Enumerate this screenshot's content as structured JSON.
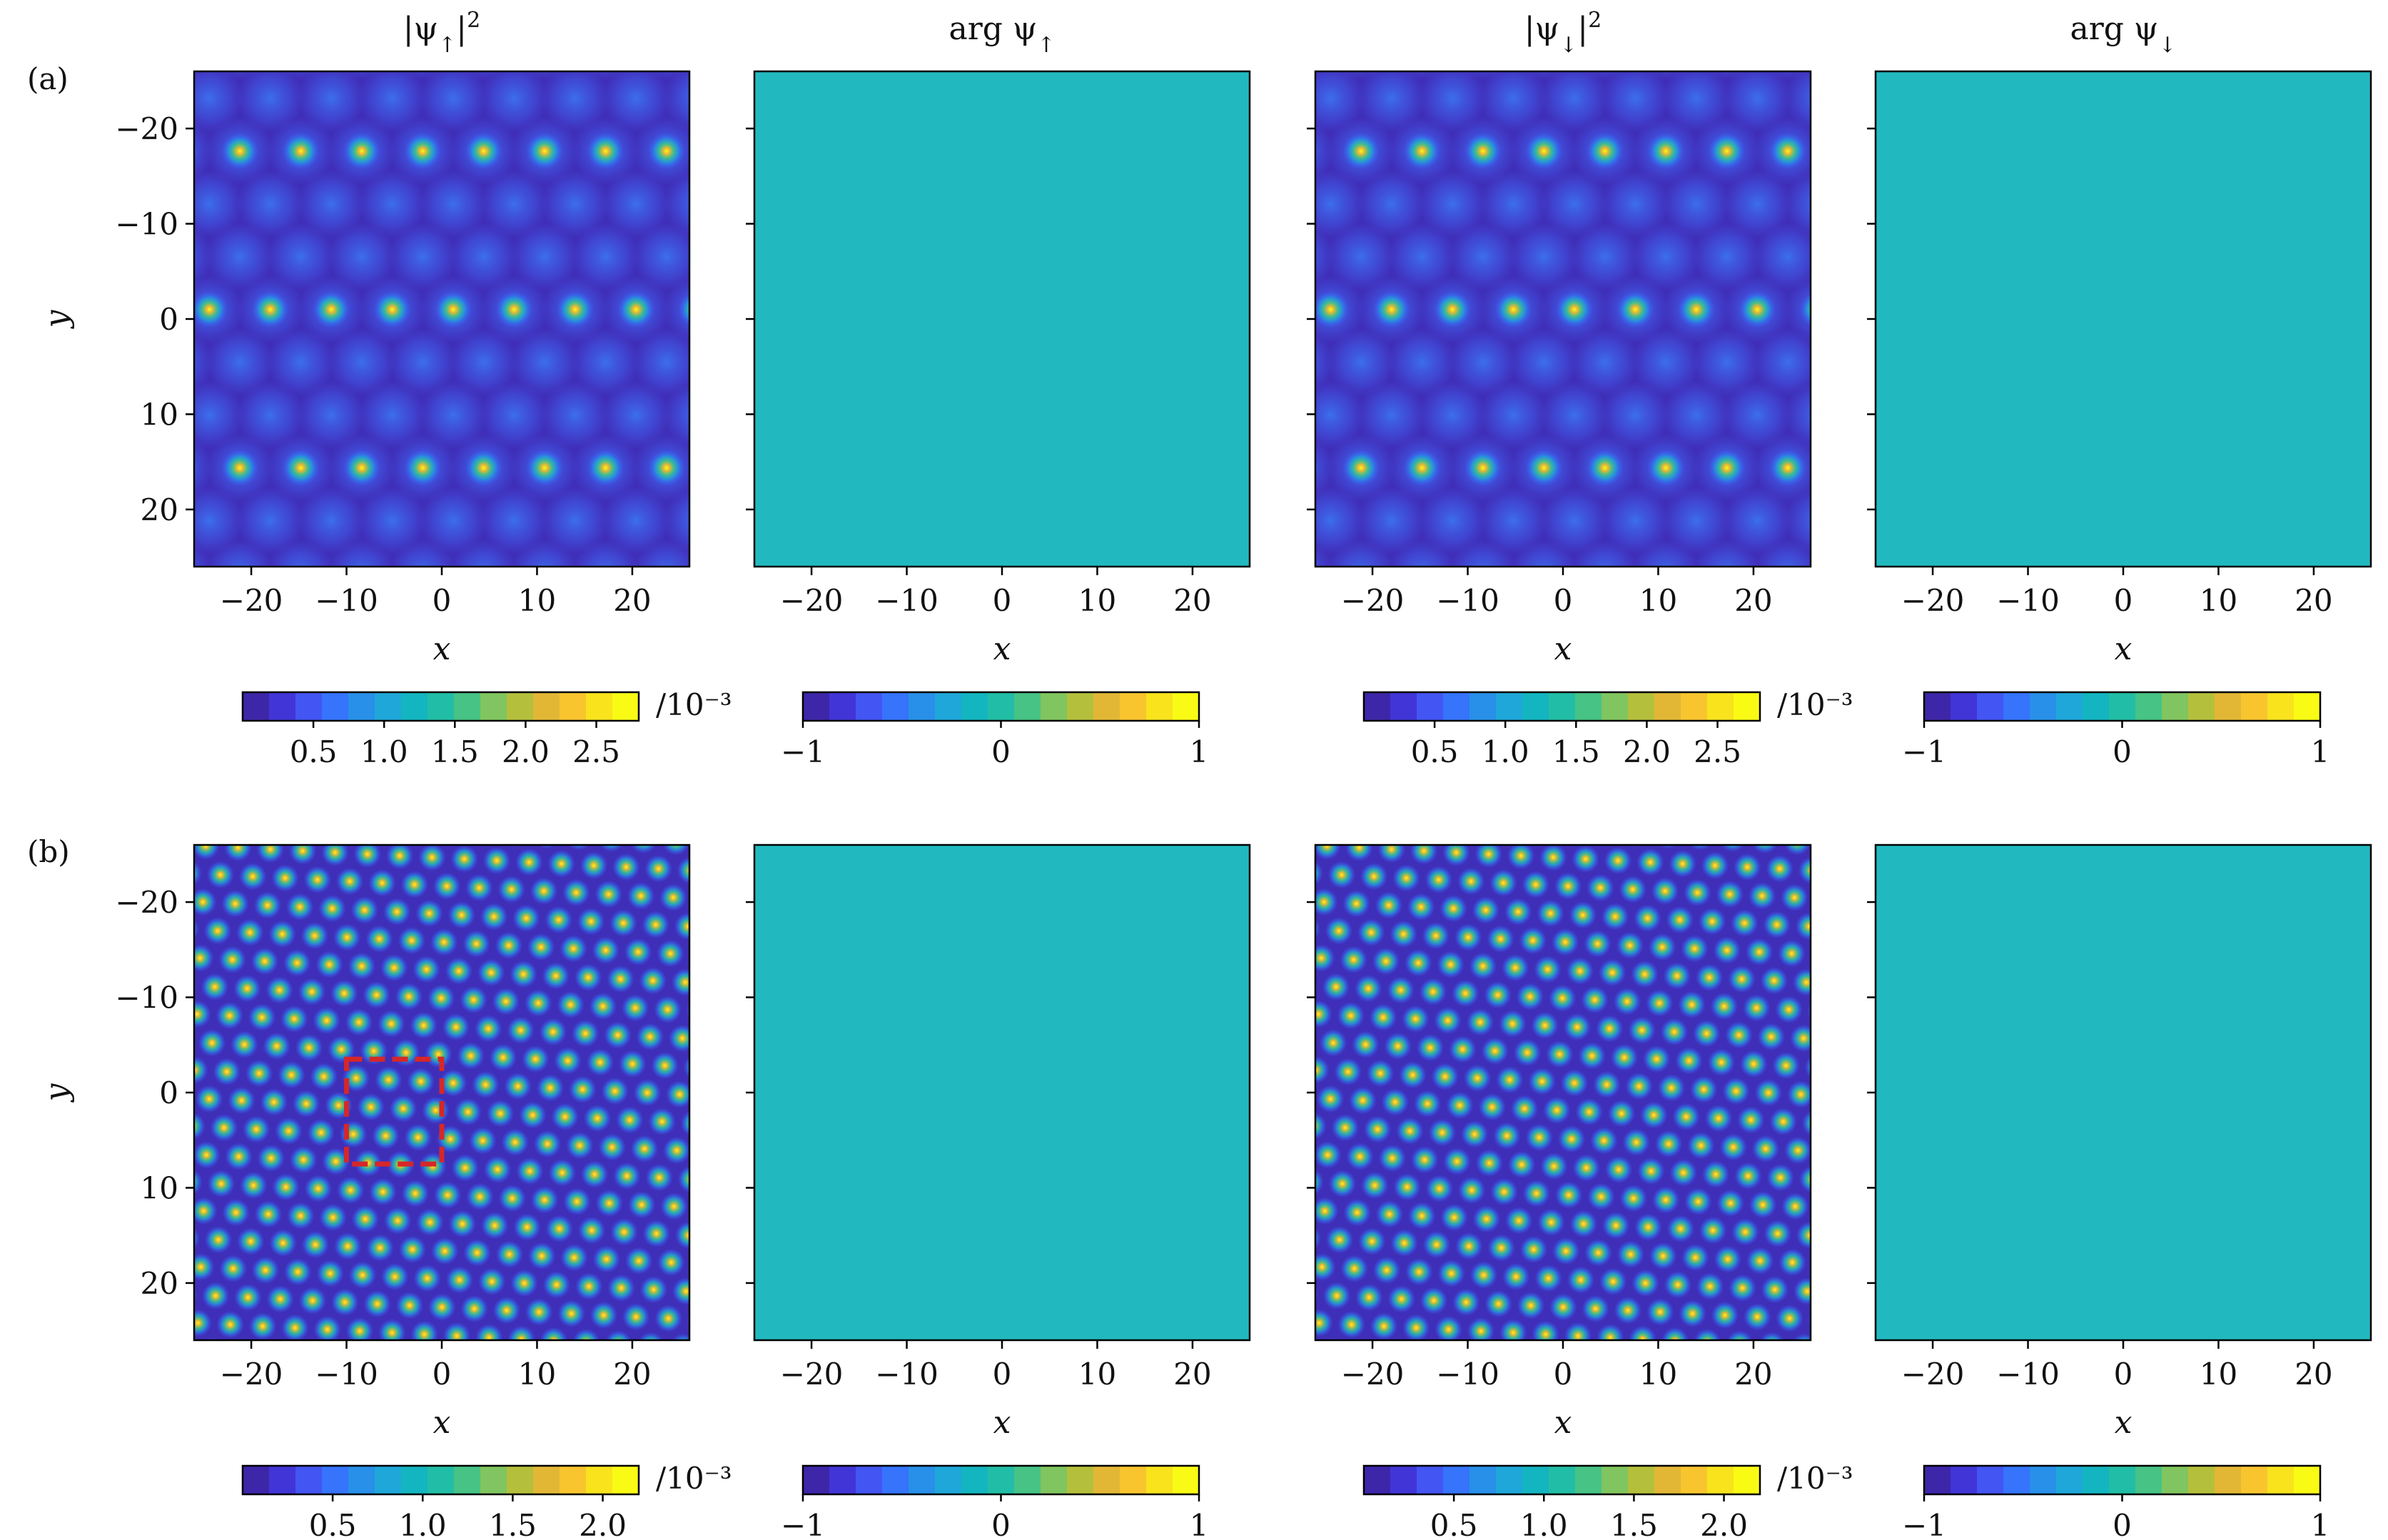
{
  "figure": {
    "rows": [
      {
        "label": "(a)"
      },
      {
        "label": "(b)"
      }
    ]
  },
  "chart_data": [
    {
      "type": "heatmap",
      "row": "(a)",
      "column": 1,
      "title": "|ψ↑|²",
      "xlabel": "x",
      "ylabel": "y",
      "xlim": [
        -26,
        26
      ],
      "ylim": [
        -26,
        26
      ],
      "xticks": [
        -20,
        -10,
        0,
        10,
        20
      ],
      "yticks": [
        -20,
        -10,
        0,
        10,
        20
      ],
      "pattern": "quasicrystal density peaks",
      "peak_spacing": 6.4,
      "peak_max": 2.8,
      "colorbar": {
        "ticks": [
          "0.5",
          "1.0",
          "1.5",
          "2.0",
          "2.5"
        ],
        "tick_values": [
          0.5,
          1.0,
          1.5,
          2.0,
          2.5
        ],
        "range": [
          0,
          2.8
        ],
        "unit": "/10⁻³"
      }
    },
    {
      "type": "heatmap",
      "row": "(a)",
      "column": 2,
      "title": "arg ψ↑",
      "xlabel": "x",
      "ylabel": "",
      "xlim": [
        -26,
        26
      ],
      "ylim": [
        -26,
        26
      ],
      "xticks": [
        -20,
        -10,
        0,
        10,
        20
      ],
      "yticks": [
        -20,
        -10,
        0,
        10,
        20
      ],
      "uniform_value": 0,
      "colorbar": {
        "ticks": [
          "−1",
          "0",
          "1"
        ],
        "tick_values": [
          -1,
          0,
          1
        ],
        "range": [
          -1,
          1
        ],
        "unit": ""
      }
    },
    {
      "type": "heatmap",
      "row": "(a)",
      "column": 3,
      "title": "|ψ↓|²",
      "xlabel": "x",
      "ylabel": "",
      "xlim": [
        -26,
        26
      ],
      "ylim": [
        -26,
        26
      ],
      "xticks": [
        -20,
        -10,
        0,
        10,
        20
      ],
      "yticks": [
        -20,
        -10,
        0,
        10,
        20
      ],
      "pattern": "quasicrystal density peaks",
      "peak_spacing": 6.4,
      "peak_max": 2.8,
      "colorbar": {
        "ticks": [
          "0.5",
          "1.0",
          "1.5",
          "2.0",
          "2.5"
        ],
        "tick_values": [
          0.5,
          1.0,
          1.5,
          2.0,
          2.5
        ],
        "range": [
          0,
          2.8
        ],
        "unit": "/10⁻³"
      }
    },
    {
      "type": "heatmap",
      "row": "(a)",
      "column": 4,
      "title": "arg ψ↓",
      "xlabel": "x",
      "ylabel": "",
      "xlim": [
        -26,
        26
      ],
      "ylim": [
        -26,
        26
      ],
      "xticks": [
        -20,
        -10,
        0,
        10,
        20
      ],
      "yticks": [
        -20,
        -10,
        0,
        10,
        20
      ],
      "uniform_value": 0,
      "colorbar": {
        "ticks": [
          "−1",
          "0",
          "1"
        ],
        "tick_values": [
          -1,
          0,
          1
        ],
        "range": [
          -1,
          1
        ],
        "unit": ""
      }
    },
    {
      "type": "heatmap",
      "row": "(b)",
      "column": 1,
      "title": "",
      "xlabel": "x",
      "ylabel": "y",
      "xlim": [
        -26,
        26
      ],
      "ylim": [
        -26,
        26
      ],
      "xticks": [
        -20,
        -10,
        0,
        10,
        20
      ],
      "yticks": [
        -20,
        -10,
        0,
        10,
        20
      ],
      "pattern": "quasicrystal density peaks",
      "peak_spacing": 3.4,
      "peak_max": 2.2,
      "highlight_box": {
        "x": [
          -10,
          0
        ],
        "y": [
          -3.5,
          7.5
        ],
        "style": "dashed",
        "color": "#d62728"
      },
      "colorbar": {
        "ticks": [
          "0.5",
          "1.0",
          "1.5",
          "2.0"
        ],
        "tick_values": [
          0.5,
          1.0,
          1.5,
          2.0
        ],
        "range": [
          0,
          2.2
        ],
        "unit": "/10⁻³"
      }
    },
    {
      "type": "heatmap",
      "row": "(b)",
      "column": 2,
      "title": "",
      "xlabel": "x",
      "ylabel": "",
      "xlim": [
        -26,
        26
      ],
      "ylim": [
        -26,
        26
      ],
      "xticks": [
        -20,
        -10,
        0,
        10,
        20
      ],
      "yticks": [
        -20,
        -10,
        0,
        10,
        20
      ],
      "uniform_value": 0,
      "colorbar": {
        "ticks": [
          "−1",
          "0",
          "1"
        ],
        "tick_values": [
          -1,
          0,
          1
        ],
        "range": [
          -1,
          1
        ],
        "unit": ""
      }
    },
    {
      "type": "heatmap",
      "row": "(b)",
      "column": 3,
      "title": "",
      "xlabel": "x",
      "ylabel": "",
      "xlim": [
        -26,
        26
      ],
      "ylim": [
        -26,
        26
      ],
      "xticks": [
        -20,
        -10,
        0,
        10,
        20
      ],
      "yticks": [
        -20,
        -10,
        0,
        10,
        20
      ],
      "pattern": "quasicrystal density peaks",
      "peak_spacing": 3.4,
      "peak_max": 2.2,
      "colorbar": {
        "ticks": [
          "0.5",
          "1.0",
          "1.5",
          "2.0"
        ],
        "tick_values": [
          0.5,
          1.0,
          1.5,
          2.0
        ],
        "range": [
          0,
          2.2
        ],
        "unit": "/10⁻³"
      }
    },
    {
      "type": "heatmap",
      "row": "(b)",
      "column": 4,
      "title": "",
      "xlabel": "x",
      "ylabel": "",
      "xlim": [
        -26,
        26
      ],
      "ylim": [
        -26,
        26
      ],
      "xticks": [
        -20,
        -10,
        0,
        10,
        20
      ],
      "yticks": [
        -20,
        -10,
        0,
        10,
        20
      ],
      "uniform_value": 0,
      "colorbar": {
        "ticks": [
          "−1",
          "0",
          "1"
        ],
        "tick_values": [
          -1,
          0,
          1
        ],
        "range": [
          -1,
          1
        ],
        "unit": ""
      }
    }
  ],
  "colors": {
    "viridis_like": [
      "#3e26a8",
      "#4135d7",
      "#4355f2",
      "#3574fb",
      "#2890e8",
      "#1fa7d9",
      "#13b5c0",
      "#22bda6",
      "#47c385",
      "#80c55f",
      "#b4c03c",
      "#e3b736",
      "#f8c52f",
      "#f8e31d",
      "#f9fb15"
    ],
    "phase_uniform": "#21b9bf",
    "highlight_box": "#d62728"
  }
}
